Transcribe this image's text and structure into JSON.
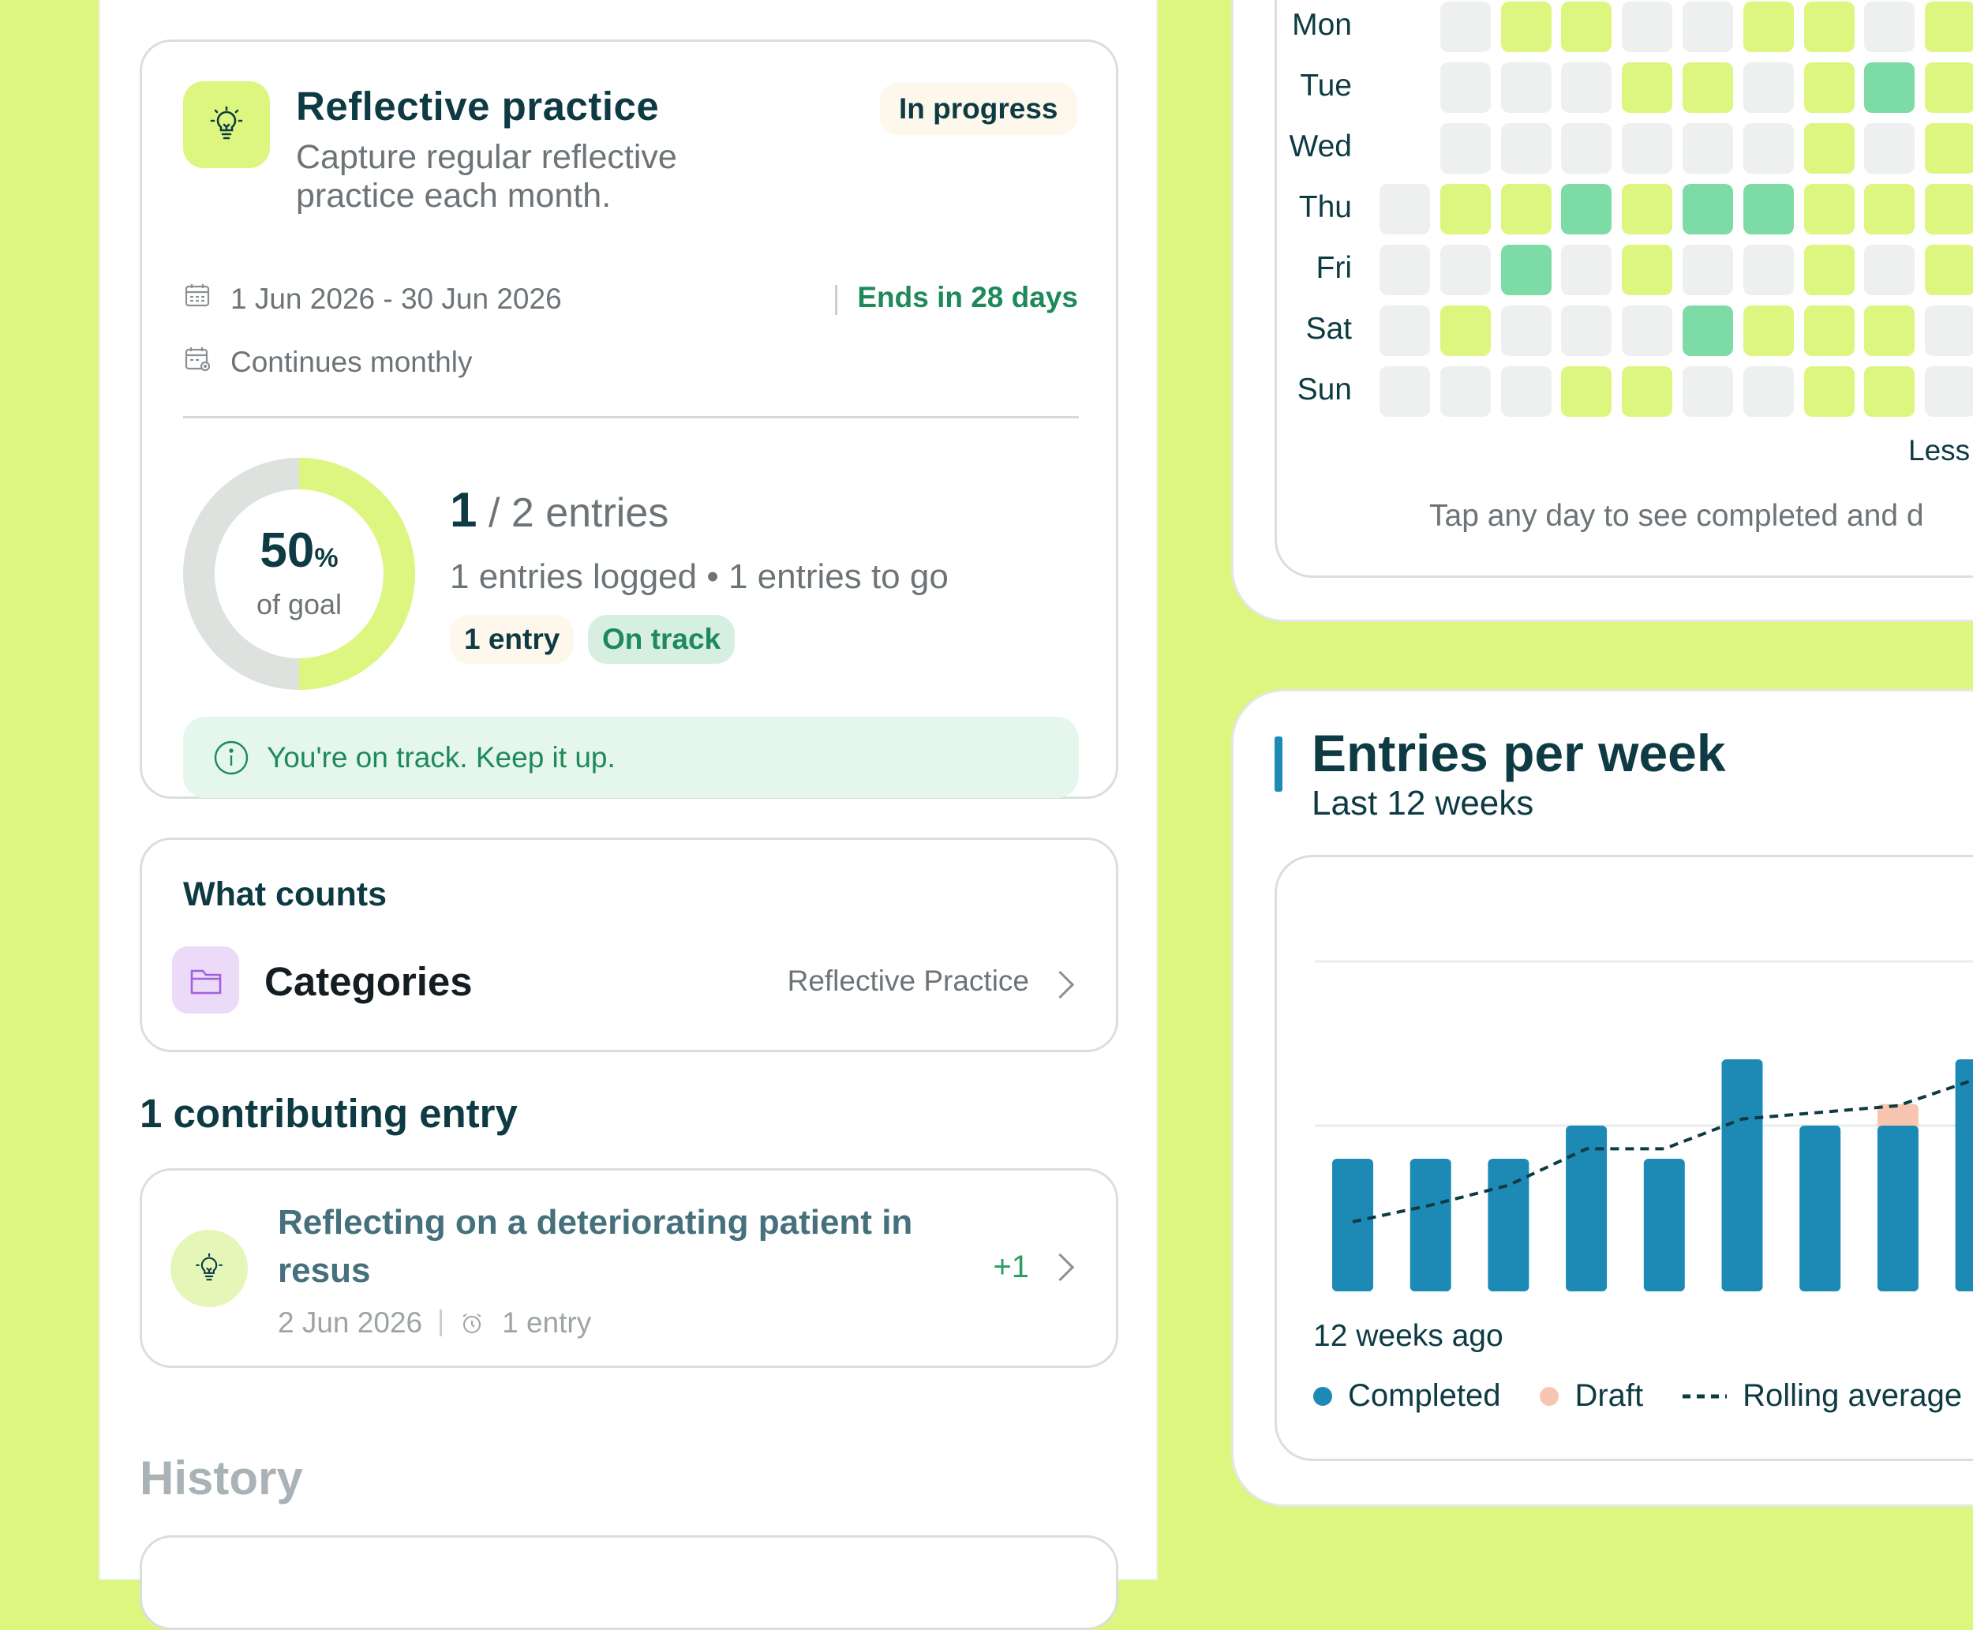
{
  "goal": {
    "title": "Reflective practice",
    "description": "Capture regular reflective practice each month.",
    "status": "In progress",
    "date_range": "1 Jun 2026 - 30 Jun 2026",
    "ends_in": "Ends in 28 days",
    "recurrence": "Continues monthly",
    "progress_percent": 50,
    "percent_value": "50",
    "percent_unit": "%",
    "percent_label": "of goal",
    "entries_done": "1",
    "entries_total": "/ 2 entries",
    "entries_summary": "1 entries logged • 1 entries to go",
    "entry_chip": "1 entry",
    "track_chip": "On track",
    "alert": "You're on track. Keep it up."
  },
  "what_counts": {
    "title": "What counts",
    "category_label": "Categories",
    "category_value": "Reflective Practice"
  },
  "contributing": {
    "title": "1 contributing entry",
    "entry": {
      "title": "Reflecting on a deteriorating patient in resus",
      "date": "2 Jun 2026",
      "count": "1 entry",
      "points": "+1"
    }
  },
  "history": {
    "title": "History"
  },
  "heatmap": {
    "days": [
      "Mon",
      "Tue",
      "Wed",
      "Thu",
      "Fri",
      "Sat",
      "Sun"
    ],
    "levels": [
      [
        null,
        0,
        1,
        1,
        0,
        0,
        1,
        1,
        0,
        1
      ],
      [
        null,
        0,
        0,
        0,
        1,
        1,
        0,
        1,
        2,
        1
      ],
      [
        null,
        0,
        0,
        0,
        0,
        0,
        0,
        1,
        0,
        1
      ],
      [
        0,
        1,
        1,
        2,
        1,
        2,
        2,
        1,
        1,
        1
      ],
      [
        0,
        0,
        2,
        0,
        1,
        0,
        0,
        1,
        0,
        1
      ],
      [
        0,
        1,
        0,
        0,
        0,
        2,
        1,
        1,
        1,
        0
      ],
      [
        0,
        0,
        0,
        1,
        1,
        0,
        0,
        1,
        1,
        0
      ]
    ],
    "legend_less": "Less",
    "hint": "Tap any day to see completed and d"
  },
  "colors": {
    "background": "#dcf67f",
    "accent_green": "#1e8a5a",
    "completed": "#1d8ab5",
    "draft": "#f8c6b0",
    "heat_empty": "#eef0ef",
    "heat_low": "#dcf67f",
    "heat_high": "#7ddca6"
  },
  "chart_data": {
    "type": "bar",
    "title": "Entries per week",
    "subtitle": "Last 12 weeks",
    "x_start_label": "12 weeks ago",
    "series": [
      {
        "name": "Completed",
        "values": [
          4,
          4,
          4,
          5,
          4,
          7,
          5,
          5,
          7
        ]
      },
      {
        "name": "Draft",
        "values": [
          0,
          0,
          0,
          0,
          0,
          0,
          0,
          1,
          0
        ]
      },
      {
        "name": "Rolling average",
        "values": [
          2.1,
          2.6,
          3.2,
          4.3,
          4.3,
          5.2,
          5.4,
          5.6,
          6.4
        ]
      }
    ],
    "legend": [
      "Completed",
      "Draft",
      "Rolling average"
    ]
  }
}
